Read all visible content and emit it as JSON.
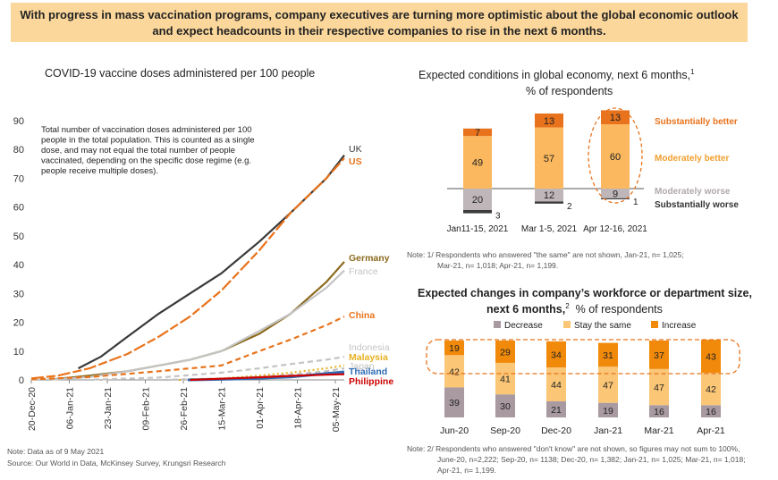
{
  "banner": {
    "line1": "With progress in mass vaccination programs, company executives are turning more optimistic about the global economic outlook",
    "line2": "and expect headcounts in their respective companies to rise in the next 6 months."
  },
  "colors": {
    "banner": "#fcd79b",
    "UK": "#3a3a3a",
    "US": "#e8731c",
    "Germany": "#8c6a1e",
    "France": "#c4c4c4",
    "China": "#e8731c",
    "Indonesia": "#c4c4c4",
    "Malaysia": "#e6b020",
    "Japan": "#c0c0c0",
    "Thailand": "#2f6db5",
    "Philippines": "#cc0000",
    "substantially_better": "#e8731c",
    "moderately_better": "#fbb85e",
    "moderately_worse": "#bfb6ba",
    "substantially_worse": "#3c3c3c",
    "decrease": "#a89aa0",
    "stay": "#fbc676",
    "increase": "#f18a0a",
    "highlight": "#e8731c"
  },
  "notes": {
    "left1": "Note: Data as of 9 May 2021",
    "left2": "Source: Our World in Data, McKinsey Survey, Krungsri Research",
    "right1_line1": "Note: 1/ Respondents who answered \"the same\" are not shown, Jan-21, n= 1,025;",
    "right1_line2": "Mar-21, n= 1,018; Apr-21, n= 1,199.",
    "right2_line1": "Note: 2/ Respondents who answered \"don't know\" are not shown, so figures may not sum to 100%,",
    "right2_line2": "June-20, n=2,222; Sep-20, n= 1138; Dec-20, n= 1,382; Jan-21, n= 1,025; Mar-21, n= 1,018;",
    "right2_line3": "Apr-21, n= 1,199."
  },
  "chart_data": [
    {
      "type": "line",
      "title": "COVID-19 vaccine doses administered per 100 people",
      "annotation": [
        "Total number of vaccination doses administered per 100",
        "people in the total population. This is counted as a single",
        "dose, and may not equal the total number of people",
        "vaccinated, depending on the specific dose regime (e.g.",
        "people receive multiple doses)."
      ],
      "x_ticks": [
        "20-Dec-20",
        "06-Jan-21",
        "23-Jan-21",
        "09-Feb-21",
        "26-Feb-21",
        "15-Mar-21",
        "01-Apr-21",
        "18-Apr-21",
        "05-May-21"
      ],
      "y_ticks": [
        "0",
        "10",
        "20",
        "30",
        "40",
        "50",
        "60",
        "70",
        "80",
        "90"
      ],
      "ylim": [
        0,
        90
      ],
      "xlim": [
        "2020-12-20",
        "2021-05-09"
      ],
      "grid": false,
      "series": [
        {
          "name": "UK",
          "style": "solid",
          "points": [
            [
              "2021-01-10",
              4
            ],
            [
              "2021-01-20",
              8
            ],
            [
              "2021-02-01",
              15
            ],
            [
              "2021-02-15",
              23
            ],
            [
              "2021-03-01",
              30
            ],
            [
              "2021-03-15",
              37
            ],
            [
              "2021-04-01",
              48
            ],
            [
              "2021-04-15",
              58
            ],
            [
              "2021-05-01",
              70
            ],
            [
              "2021-05-09",
              78
            ]
          ]
        },
        {
          "name": "US",
          "style": "mixed",
          "points": [
            [
              "2020-12-20",
              0.5
            ],
            [
              "2021-01-01",
              1.5
            ],
            [
              "2021-01-15",
              4
            ],
            [
              "2021-02-01",
              9
            ],
            [
              "2021-02-15",
              15
            ],
            [
              "2021-03-01",
              22
            ],
            [
              "2021-03-15",
              31
            ],
            [
              "2021-04-01",
              45
            ],
            [
              "2021-04-15",
              58
            ],
            [
              "2021-05-01",
              70
            ],
            [
              "2021-05-09",
              77
            ]
          ]
        },
        {
          "name": "Germany",
          "style": "solid",
          "points": [
            [
              "2020-12-27",
              0
            ],
            [
              "2021-01-15",
              1.5
            ],
            [
              "2021-02-01",
              3
            ],
            [
              "2021-02-15",
              5
            ],
            [
              "2021-03-01",
              7
            ],
            [
              "2021-03-15",
              10
            ],
            [
              "2021-04-01",
              16
            ],
            [
              "2021-04-15",
              23
            ],
            [
              "2021-05-01",
              34
            ],
            [
              "2021-05-09",
              41
            ]
          ]
        },
        {
          "name": "France",
          "style": "solid",
          "points": [
            [
              "2020-12-27",
              0
            ],
            [
              "2021-01-15",
              1
            ],
            [
              "2021-02-01",
              3
            ],
            [
              "2021-02-15",
              5
            ],
            [
              "2021-03-01",
              7
            ],
            [
              "2021-03-15",
              10
            ],
            [
              "2021-04-01",
              17
            ],
            [
              "2021-04-15",
              23
            ],
            [
              "2021-05-01",
              32
            ],
            [
              "2021-05-09",
              38
            ]
          ]
        },
        {
          "name": "China",
          "style": "dashed",
          "points": [
            [
              "2020-12-20",
              0.2
            ],
            [
              "2021-01-15",
              1
            ],
            [
              "2021-02-15",
              3
            ],
            [
              "2021-03-15",
              5
            ],
            [
              "2021-04-01",
              10
            ],
            [
              "2021-04-15",
              14
            ],
            [
              "2021-05-01",
              19
            ],
            [
              "2021-05-09",
              22
            ]
          ]
        },
        {
          "name": "Indonesia",
          "style": "dashed",
          "points": [
            [
              "2021-01-13",
              0
            ],
            [
              "2021-02-15",
              0.8
            ],
            [
              "2021-03-15",
              2.5
            ],
            [
              "2021-04-01",
              4
            ],
            [
              "2021-04-15",
              5.5
            ],
            [
              "2021-05-01",
              7
            ],
            [
              "2021-05-09",
              8
            ]
          ]
        },
        {
          "name": "Malaysia",
          "style": "dotted",
          "points": [
            [
              "2021-02-24",
              0
            ],
            [
              "2021-03-15",
              0.5
            ],
            [
              "2021-04-01",
              1.5
            ],
            [
              "2021-04-15",
              2.5
            ],
            [
              "2021-05-01",
              4
            ],
            [
              "2021-05-09",
              5
            ]
          ]
        },
        {
          "name": "Japan",
          "style": "dashed",
          "points": [
            [
              "2021-02-17",
              0
            ],
            [
              "2021-03-15",
              0.5
            ],
            [
              "2021-04-01",
              1
            ],
            [
              "2021-04-15",
              1.8
            ],
            [
              "2021-05-01",
              3
            ],
            [
              "2021-05-09",
              4
            ]
          ]
        },
        {
          "name": "Thailand",
          "style": "solid",
          "points": [
            [
              "2021-02-28",
              0
            ],
            [
              "2021-03-15",
              0.2
            ],
            [
              "2021-04-01",
              0.6
            ],
            [
              "2021-04-15",
              1
            ],
            [
              "2021-05-01",
              2.2
            ],
            [
              "2021-05-09",
              2.8
            ]
          ]
        },
        {
          "name": "Philippines",
          "style": "solid",
          "points": [
            [
              "2021-03-01",
              0
            ],
            [
              "2021-03-15",
              0.4
            ],
            [
              "2021-04-01",
              0.9
            ],
            [
              "2021-04-15",
              1.4
            ],
            [
              "2021-05-01",
              1.8
            ],
            [
              "2021-05-09",
              2
            ]
          ]
        }
      ]
    },
    {
      "type": "bar",
      "title": "Expected conditions in global economy, next 6 months,",
      "title_sup": "1",
      "subtitle": "% of respondents",
      "categories": [
        "Jan11-15, 2021",
        "Mar 1-5, 2021",
        "Apr 12-16, 2021"
      ],
      "series": [
        {
          "name": "Substantially better",
          "values": [
            7,
            13,
            13
          ]
        },
        {
          "name": "Moderately better",
          "values": [
            49,
            57,
            60
          ]
        },
        {
          "name": "Moderately worse",
          "values": [
            -20,
            -12,
            -9
          ]
        },
        {
          "name": "Substantially worse",
          "values": [
            -3,
            -2,
            -1
          ]
        }
      ],
      "legend": "right"
    },
    {
      "type": "bar",
      "title_line1": "Expected changes in company’s workforce or department size,",
      "title_line2": "next 6 months,",
      "title_sup": "2",
      "subtitle": "% of respondents",
      "categories": [
        "Jun-20",
        "Sep-20",
        "Dec-20",
        "Jan-21",
        "Mar-21",
        "Apr-21"
      ],
      "series": [
        {
          "name": "Decrease",
          "values": [
            39,
            30,
            21,
            19,
            16,
            16
          ]
        },
        {
          "name": "Stay the same",
          "values": [
            42,
            41,
            44,
            47,
            47,
            42
          ]
        },
        {
          "name": "Increase",
          "values": [
            19,
            29,
            34,
            31,
            37,
            43
          ]
        }
      ],
      "legend": "top"
    }
  ]
}
